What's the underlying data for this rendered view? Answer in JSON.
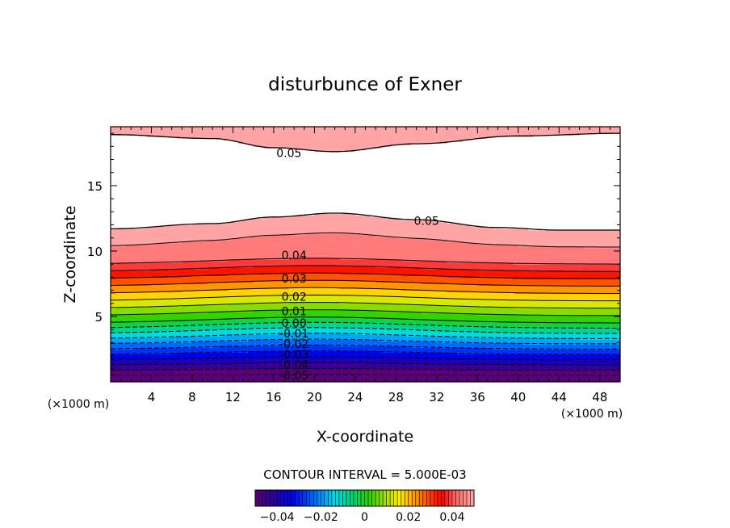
{
  "chart_data": {
    "type": "contour",
    "title": "disturbunce of Exner",
    "xlabel": "X-coordinate",
    "ylabel": "Z-coordinate",
    "x_unit_left": "(×1000 m)",
    "x_unit_right": "(×1000 m)",
    "xlim": [
      0,
      50
    ],
    "ylim": [
      0,
      19.5
    ],
    "xticks": [
      4,
      8,
      12,
      16,
      20,
      24,
      28,
      32,
      36,
      40,
      44,
      48
    ],
    "xtick_labels": [
      "4",
      "8",
      "12",
      "16",
      "20",
      "24",
      "28",
      "32",
      "36",
      "40",
      "44",
      "48"
    ],
    "yticks": [
      5,
      10,
      15
    ],
    "ytick_labels": [
      "5",
      "10",
      "15"
    ],
    "contour_interval_text": "CONTOUR INTERVAL = 5.000E-03",
    "contour_interval": 0.005,
    "vmin": -0.05,
    "vmax": 0.05,
    "negative_dashed": true,
    "colorbar": {
      "ticks": [
        -0.04,
        -0.02,
        0,
        0.02,
        0.04
      ],
      "tick_labels": [
        "−0.04",
        "−0.02",
        "0",
        "0.02",
        "0.04"
      ]
    },
    "contour_labels": [
      {
        "text": "0.05",
        "x": 17.5,
        "z": 17.5
      },
      {
        "text": "0.05",
        "x": 31,
        "z": 12.3
      },
      {
        "text": "0.04",
        "x": 18,
        "z": 9.7
      },
      {
        "text": "0.03",
        "x": 18,
        "z": 7.9
      },
      {
        "text": "0.02",
        "x": 18,
        "z": 6.5
      },
      {
        "text": "0.01",
        "x": 18,
        "z": 5.4
      },
      {
        "text": "0.00",
        "x": 18,
        "z": 4.5
      },
      {
        "text": "-0.01",
        "x": 18,
        "z": 3.7
      },
      {
        "text": "-0.02",
        "x": 18,
        "z": 2.9
      },
      {
        "text": "-0.03",
        "x": 18,
        "z": 2.1
      },
      {
        "text": "-0.04",
        "x": 18,
        "z": 1.3
      },
      {
        "text": "-0.05",
        "x": 18,
        "z": 0.5
      }
    ],
    "top_contour_field": [
      {
        "x": 0,
        "z": 18.9
      },
      {
        "x": 10,
        "z": 18.6
      },
      {
        "x": 16,
        "z": 17.9
      },
      {
        "x": 22,
        "z": 17.6
      },
      {
        "x": 30,
        "z": 18.2
      },
      {
        "x": 40,
        "z": 18.8
      },
      {
        "x": 50,
        "z": 19.0
      }
    ],
    "lower_contour_field": [
      {
        "x": 0,
        "z": 11.7
      },
      {
        "x": 10,
        "z": 12.1
      },
      {
        "x": 16,
        "z": 12.6
      },
      {
        "x": 22,
        "z": 12.9
      },
      {
        "x": 30,
        "z": 12.4
      },
      {
        "x": 38,
        "z": 11.8
      },
      {
        "x": 44,
        "z": 11.6
      },
      {
        "x": 50,
        "z": 11.6
      }
    ]
  }
}
